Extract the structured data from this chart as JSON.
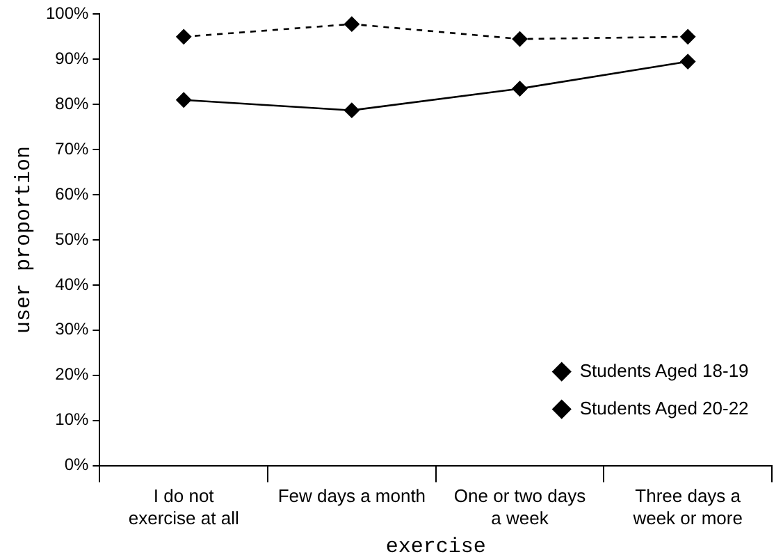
{
  "chart_data": {
    "type": "line",
    "xlabel": "exercise",
    "ylabel": "user proportion",
    "categories": [
      "I do not exercise at all",
      "Few days a month",
      "One or two days a week",
      "Three days a week or more"
    ],
    "series": [
      {
        "name": "Students Aged 18-19",
        "color": "#000000",
        "line_style": "solid",
        "values": [
          81,
          78.7,
          83.5,
          89.5
        ]
      },
      {
        "name": "Students Aged 20-22",
        "color": "#000000",
        "line_style": "dashed",
        "values": [
          95,
          97.8,
          94.5,
          95
        ]
      }
    ],
    "ylim": [
      0,
      100
    ],
    "yticks": [
      {
        "value": 0,
        "label": "0%"
      },
      {
        "value": 10,
        "label": "10%"
      },
      {
        "value": 20,
        "label": "20%"
      },
      {
        "value": 30,
        "label": "30%"
      },
      {
        "value": 40,
        "label": "40%"
      },
      {
        "value": 50,
        "label": "50%"
      },
      {
        "value": 60,
        "label": "60%"
      },
      {
        "value": 70,
        "label": "70%"
      },
      {
        "value": 80,
        "label": "80%"
      },
      {
        "value": 90,
        "label": "90%"
      },
      {
        "value": 100,
        "label": "100%"
      }
    ],
    "grid": false,
    "legend": "bottom right",
    "marker": "diamond"
  }
}
